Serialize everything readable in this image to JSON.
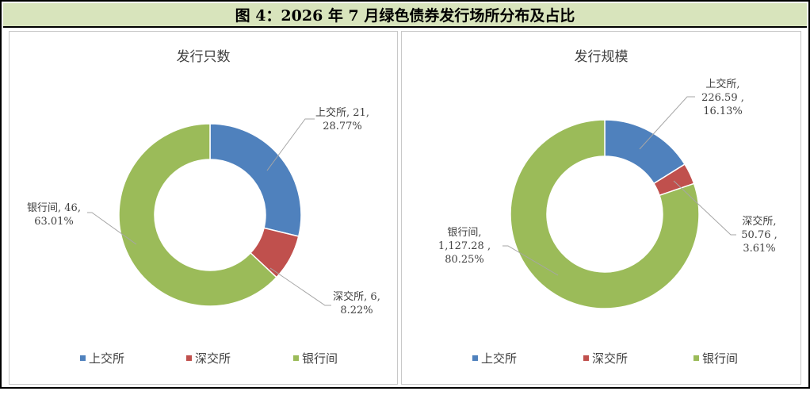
{
  "figure": {
    "title": "图 4：2026 年 7 月绿色债券发行场所分布及占比"
  },
  "colors": {
    "上交所": "#4f81bd",
    "深交所": "#c0504d",
    "银行间": "#9bbb59",
    "banner": "#d8e4bc"
  },
  "chart_data": [
    {
      "type": "pie",
      "subtype": "donut",
      "title": "发行只数",
      "categories": [
        "上交所",
        "深交所",
        "银行间"
      ],
      "values": [
        21,
        6,
        46
      ],
      "percentages": [
        "28.77%",
        "8.22%",
        "63.01%"
      ],
      "value_labels": [
        "21",
        "6",
        "46"
      ],
      "data_labels": [
        [
          "上交所, 21,",
          "28.77%"
        ],
        [
          "深交所, 6,",
          "8.22%"
        ],
        [
          "银行间, 46,",
          "63.01%"
        ]
      ],
      "legend": [
        "上交所",
        "深交所",
        "银行间"
      ],
      "legend_position": "bottom"
    },
    {
      "type": "pie",
      "subtype": "donut",
      "title": "发行规模",
      "categories": [
        "上交所",
        "深交所",
        "银行间"
      ],
      "values": [
        226.59,
        50.76,
        1127.28
      ],
      "percentages": [
        "16.13%",
        "3.61%",
        "80.25%"
      ],
      "value_labels": [
        "226.59",
        "50.76",
        "1,127.28"
      ],
      "data_labels": [
        [
          "上交所,",
          "226.59 ,",
          "16.13%"
        ],
        [
          "深交所,",
          "50.76 ,",
          "3.61%"
        ],
        [
          "银行间,",
          "1,127.28 ,",
          "80.25%"
        ]
      ],
      "legend": [
        "上交所",
        "深交所",
        "银行间"
      ],
      "legend_position": "bottom"
    }
  ]
}
